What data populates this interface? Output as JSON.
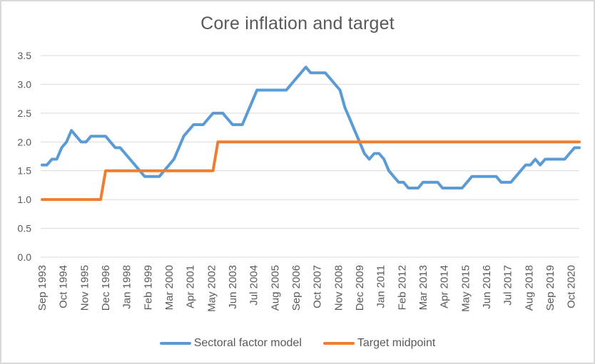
{
  "title": "Core inflation and target",
  "colors": {
    "series_blue": "#5B9BD5",
    "series_orange": "#ED7D31",
    "grid": "#D9D9D9",
    "axis_text": "#595959",
    "border": "#D9D9D9",
    "background": "#FFFFFF"
  },
  "legend": {
    "items": [
      {
        "label": "Sectoral factor model",
        "color": "#5B9BD5"
      },
      {
        "label": "Target midpoint",
        "color": "#ED7D31"
      }
    ]
  },
  "y_axis": {
    "tick_labels": [
      "0.0",
      "0.5",
      "1.0",
      "1.5",
      "2.0",
      "2.5",
      "3.0",
      "3.5"
    ],
    "min": 0,
    "max": 3.5
  },
  "x_axis": {
    "tick_labels": [
      "Sep 1993",
      "Oct 1994",
      "Nov 1995",
      "Dec 1996",
      "Jan 1998",
      "Feb 1999",
      "Mar 2000",
      "Apr 2001",
      "May 2002",
      "Jun 2003",
      "Jul 2004",
      "Aug 2005",
      "Sep 2006",
      "Oct 2007",
      "Nov 2008",
      "Dec 2009",
      "Jan 2011",
      "Feb 2012",
      "Mar 2013",
      "Apr 2014",
      "May 2015",
      "Jun 2016",
      "Jul 2017",
      "Aug 2018",
      "Sep 2019",
      "Oct 2020"
    ],
    "tick_interval_months": 13
  },
  "chart_data": {
    "type": "line",
    "title": "Core inflation and target",
    "xlabel": "",
    "ylabel": "",
    "ylim": [
      0,
      3.5
    ],
    "grid": "horizontal",
    "legend_position": "bottom",
    "x": [
      "1993Q3",
      "1993Q4",
      "1994Q1",
      "1994Q2",
      "1994Q3",
      "1994Q4",
      "1995Q1",
      "1995Q2",
      "1995Q3",
      "1995Q4",
      "1996Q1",
      "1996Q2",
      "1996Q3",
      "1996Q4",
      "1997Q1",
      "1997Q2",
      "1997Q3",
      "1997Q4",
      "1998Q1",
      "1998Q2",
      "1998Q3",
      "1998Q4",
      "1999Q1",
      "1999Q2",
      "1999Q3",
      "1999Q4",
      "2000Q1",
      "2000Q2",
      "2000Q3",
      "2000Q4",
      "2001Q1",
      "2001Q2",
      "2001Q3",
      "2001Q4",
      "2002Q1",
      "2002Q2",
      "2002Q3",
      "2002Q4",
      "2003Q1",
      "2003Q2",
      "2003Q3",
      "2003Q4",
      "2004Q1",
      "2004Q2",
      "2004Q3",
      "2004Q4",
      "2005Q1",
      "2005Q2",
      "2005Q3",
      "2005Q4",
      "2006Q1",
      "2006Q2",
      "2006Q3",
      "2006Q4",
      "2007Q1",
      "2007Q2",
      "2007Q3",
      "2007Q4",
      "2008Q1",
      "2008Q2",
      "2008Q3",
      "2008Q4",
      "2009Q1",
      "2009Q2",
      "2009Q3",
      "2009Q4",
      "2010Q1",
      "2010Q2",
      "2010Q3",
      "2010Q4",
      "2011Q1",
      "2011Q2",
      "2011Q3",
      "2011Q4",
      "2012Q1",
      "2012Q2",
      "2012Q3",
      "2012Q4",
      "2013Q1",
      "2013Q2",
      "2013Q3",
      "2013Q4",
      "2014Q1",
      "2014Q2",
      "2014Q3",
      "2014Q4",
      "2015Q1",
      "2015Q2",
      "2015Q3",
      "2015Q4",
      "2016Q1",
      "2016Q2",
      "2016Q3",
      "2016Q4",
      "2017Q1",
      "2017Q2",
      "2017Q3",
      "2017Q4",
      "2018Q1",
      "2018Q2",
      "2018Q3",
      "2018Q4",
      "2019Q1",
      "2019Q2",
      "2019Q3",
      "2019Q4",
      "2020Q1",
      "2020Q2",
      "2020Q3",
      "2020Q4",
      "2021Q1"
    ],
    "series": [
      {
        "name": "Sectoral factor model",
        "color": "#5B9BD5",
        "values": [
          1.6,
          1.6,
          1.7,
          1.7,
          1.9,
          2.0,
          2.2,
          2.1,
          2.0,
          2.0,
          2.1,
          2.1,
          2.1,
          2.1,
          2.0,
          1.9,
          1.9,
          1.8,
          1.7,
          1.6,
          1.5,
          1.4,
          1.4,
          1.4,
          1.4,
          1.5,
          1.6,
          1.7,
          1.9,
          2.1,
          2.2,
          2.3,
          2.3,
          2.3,
          2.4,
          2.5,
          2.5,
          2.5,
          2.4,
          2.3,
          2.3,
          2.3,
          2.5,
          2.7,
          2.9,
          2.9,
          2.9,
          2.9,
          2.9,
          2.9,
          2.9,
          3.0,
          3.1,
          3.2,
          3.3,
          3.2,
          3.2,
          3.2,
          3.2,
          3.1,
          3.0,
          2.9,
          2.6,
          2.4,
          2.2,
          2.0,
          1.8,
          1.7,
          1.8,
          1.8,
          1.7,
          1.5,
          1.4,
          1.3,
          1.3,
          1.2,
          1.2,
          1.2,
          1.3,
          1.3,
          1.3,
          1.3,
          1.2,
          1.2,
          1.2,
          1.2,
          1.2,
          1.3,
          1.4,
          1.4,
          1.4,
          1.4,
          1.4,
          1.4,
          1.3,
          1.3,
          1.3,
          1.4,
          1.5,
          1.6,
          1.6,
          1.7,
          1.6,
          1.7,
          1.7,
          1.7,
          1.7,
          1.7,
          1.8,
          1.9,
          1.9
        ]
      },
      {
        "name": "Target midpoint",
        "color": "#ED7D31",
        "values": [
          1.0,
          1.0,
          1.0,
          1.0,
          1.0,
          1.0,
          1.0,
          1.0,
          1.0,
          1.0,
          1.0,
          1.0,
          1.0,
          1.5,
          1.5,
          1.5,
          1.5,
          1.5,
          1.5,
          1.5,
          1.5,
          1.5,
          1.5,
          1.5,
          1.5,
          1.5,
          1.5,
          1.5,
          1.5,
          1.5,
          1.5,
          1.5,
          1.5,
          1.5,
          1.5,
          1.5,
          2.0,
          2.0,
          2.0,
          2.0,
          2.0,
          2.0,
          2.0,
          2.0,
          2.0,
          2.0,
          2.0,
          2.0,
          2.0,
          2.0,
          2.0,
          2.0,
          2.0,
          2.0,
          2.0,
          2.0,
          2.0,
          2.0,
          2.0,
          2.0,
          2.0,
          2.0,
          2.0,
          2.0,
          2.0,
          2.0,
          2.0,
          2.0,
          2.0,
          2.0,
          2.0,
          2.0,
          2.0,
          2.0,
          2.0,
          2.0,
          2.0,
          2.0,
          2.0,
          2.0,
          2.0,
          2.0,
          2.0,
          2.0,
          2.0,
          2.0,
          2.0,
          2.0,
          2.0,
          2.0,
          2.0,
          2.0,
          2.0,
          2.0,
          2.0,
          2.0,
          2.0,
          2.0,
          2.0,
          2.0,
          2.0,
          2.0,
          2.0,
          2.0,
          2.0,
          2.0,
          2.0,
          2.0,
          2.0,
          2.0,
          2.0
        ]
      }
    ]
  }
}
